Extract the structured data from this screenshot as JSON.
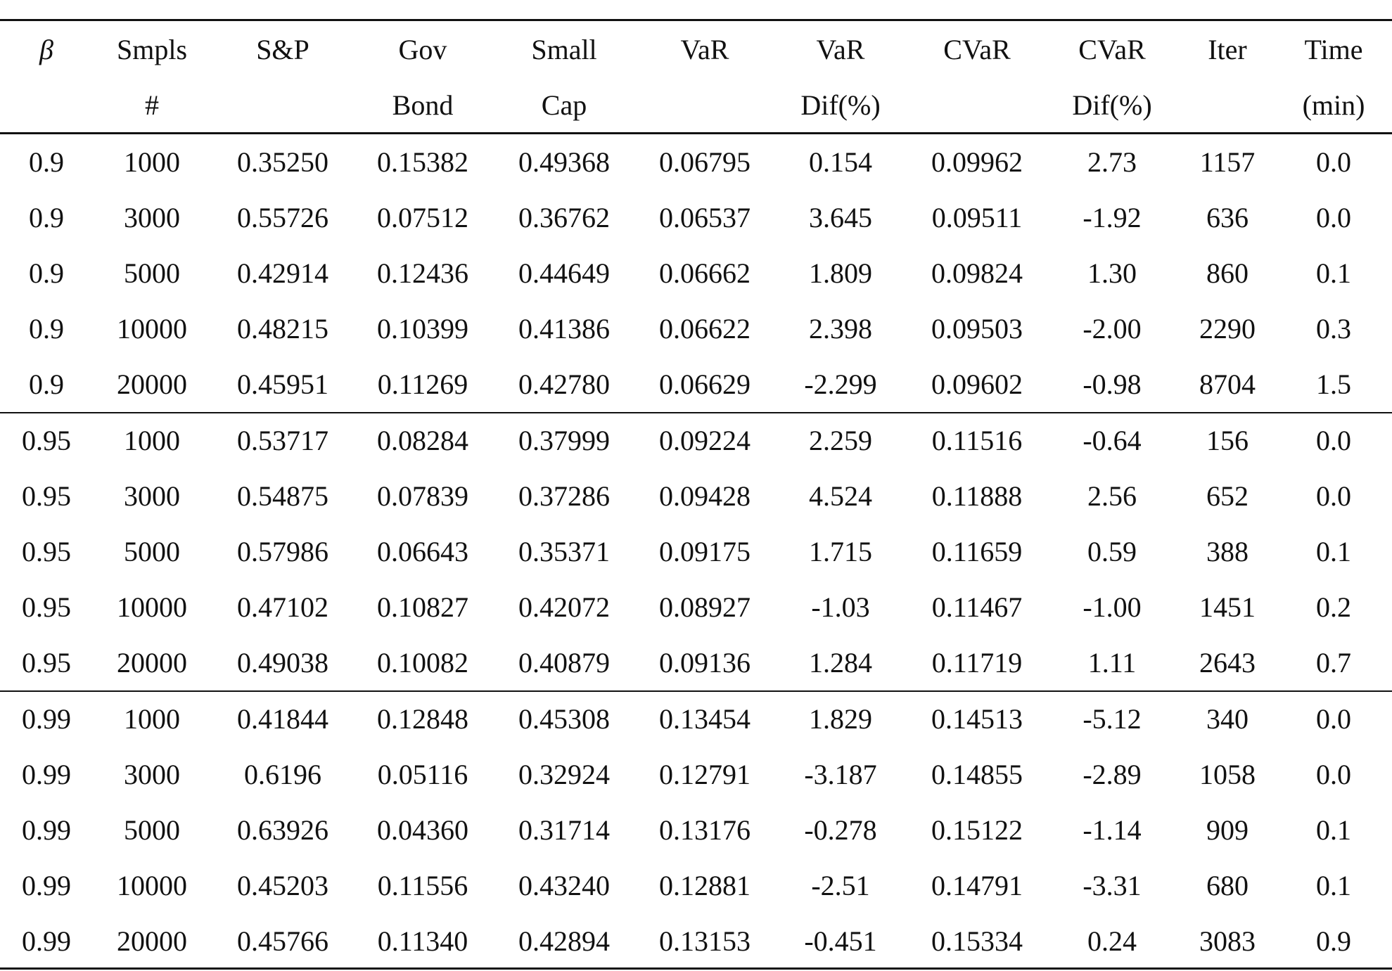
{
  "table": {
    "header": [
      [
        "β"
      ],
      [
        "Smpls",
        "#"
      ],
      [
        "S&P"
      ],
      [
        "Gov",
        "Bond"
      ],
      [
        "Small",
        "Cap"
      ],
      [
        "VaR"
      ],
      [
        "VaR",
        "Dif(%)"
      ],
      [
        "CVaR"
      ],
      [
        "CVaR",
        "Dif(%)"
      ],
      [
        "Iter"
      ],
      [
        "Time",
        "(min)"
      ]
    ],
    "rows": [
      [
        "0.9",
        "1000",
        "0.35250",
        "0.15382",
        "0.49368",
        "0.06795",
        "0.154",
        "0.09962",
        "2.73",
        "1157",
        "0.0"
      ],
      [
        "0.9",
        "3000",
        "0.55726",
        "0.07512",
        "0.36762",
        "0.06537",
        "3.645",
        "0.09511",
        "-1.92",
        "636",
        "0.0"
      ],
      [
        "0.9",
        "5000",
        "0.42914",
        "0.12436",
        "0.44649",
        "0.06662",
        "1.809",
        "0.09824",
        "1.30",
        "860",
        "0.1"
      ],
      [
        "0.9",
        "10000",
        "0.48215",
        "0.10399",
        "0.41386",
        "0.06622",
        "2.398",
        "0.09503",
        "-2.00",
        "2290",
        "0.3"
      ],
      [
        "0.9",
        "20000",
        "0.45951",
        "0.11269",
        "0.42780",
        "0.06629",
        "-2.299",
        "0.09602",
        "-0.98",
        "8704",
        "1.5"
      ],
      [
        "0.95",
        "1000",
        "0.53717",
        "0.08284",
        "0.37999",
        "0.09224",
        "2.259",
        "0.11516",
        "-0.64",
        "156",
        "0.0"
      ],
      [
        "0.95",
        "3000",
        "0.54875",
        "0.07839",
        "0.37286",
        "0.09428",
        "4.524",
        "0.11888",
        "2.56",
        "652",
        "0.0"
      ],
      [
        "0.95",
        "5000",
        "0.57986",
        "0.06643",
        "0.35371",
        "0.09175",
        "1.715",
        "0.11659",
        "0.59",
        "388",
        "0.1"
      ],
      [
        "0.95",
        "10000",
        "0.47102",
        "0.10827",
        "0.42072",
        "0.08927",
        "-1.03",
        "0.11467",
        "-1.00",
        "1451",
        "0.2"
      ],
      [
        "0.95",
        "20000",
        "0.49038",
        "0.10082",
        "0.40879",
        "0.09136",
        "1.284",
        "0.11719",
        "1.11",
        "2643",
        "0.7"
      ],
      [
        "0.99",
        "1000",
        "0.41844",
        "0.12848",
        "0.45308",
        "0.13454",
        "1.829",
        "0.14513",
        "-5.12",
        "340",
        "0.0"
      ],
      [
        "0.99",
        "3000",
        "0.6196",
        "0.05116",
        "0.32924",
        "0.12791",
        "-3.187",
        "0.14855",
        "-2.89",
        "1058",
        "0.0"
      ],
      [
        "0.99",
        "5000",
        "0.63926",
        "0.04360",
        "0.31714",
        "0.13176",
        "-0.278",
        "0.15122",
        "-1.14",
        "909",
        "0.1"
      ],
      [
        "0.99",
        "10000",
        "0.45203",
        "0.11556",
        "0.43240",
        "0.12881",
        "-2.51",
        "0.14791",
        "-3.31",
        "680",
        "0.1"
      ],
      [
        "0.99",
        "20000",
        "0.45766",
        "0.11340",
        "0.42894",
        "0.13153",
        "-0.451",
        "0.15334",
        "0.24",
        "3083",
        "0.9"
      ]
    ]
  }
}
